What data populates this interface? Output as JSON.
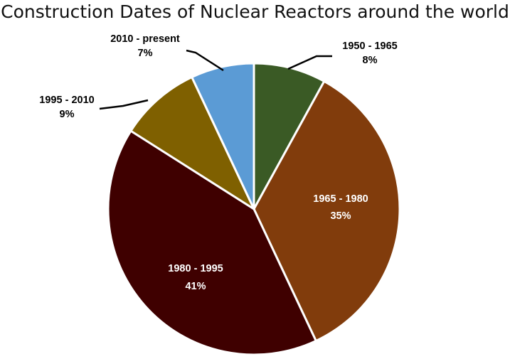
{
  "chart_data": {
    "type": "pie",
    "title": "Construction Dates of Nuclear Reactors around the world",
    "categories": [
      "1950 - 1965",
      "1965 - 1980",
      "1980 - 1995",
      "1995 - 2010",
      "2010 - present"
    ],
    "values": [
      8,
      35,
      41,
      9,
      7
    ],
    "value_labels": [
      "8%",
      "35%",
      "41%",
      "9%",
      "7%"
    ],
    "unit": "%",
    "colors": [
      "#3a5a25",
      "#813c0c",
      "#3f0000",
      "#7f6000",
      "#5b9bd5"
    ],
    "label_colors": [
      "#000000",
      "#ffffff",
      "#ffffff",
      "#000000",
      "#000000"
    ],
    "label_placement": [
      "outside",
      "inside",
      "inside",
      "outside",
      "outside"
    ],
    "legend": "none"
  }
}
